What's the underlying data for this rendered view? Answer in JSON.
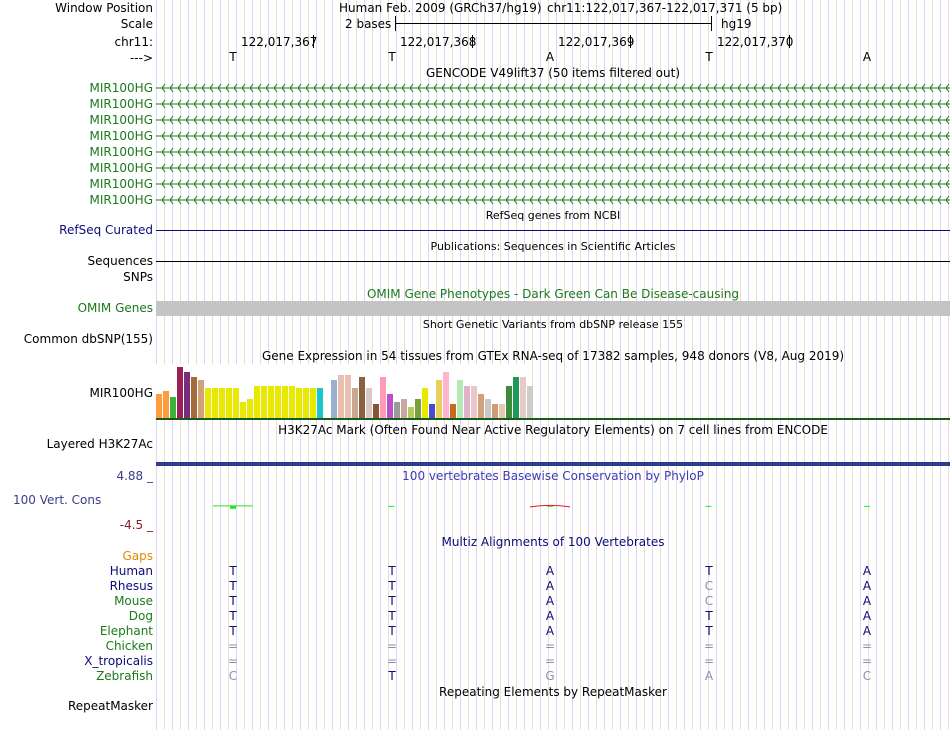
{
  "header": {
    "window_position_label": "Window Position",
    "assembly": "Human Feb. 2009 (GRCh37/hg19)",
    "position": "chr11:122,017,367-122,017,371 (5 bp)",
    "scale_label": "Scale",
    "scale_value": "2 bases",
    "scale_db": "hg19",
    "chrom_label": "chr11:",
    "ticks": [
      "122,017,367",
      "122,017,368",
      "122,017,369",
      "122,017,370"
    ],
    "strand_label": "--->",
    "sequence": [
      "T",
      "T",
      "A",
      "T",
      "A"
    ]
  },
  "gencode": {
    "title": "GENCODE V49lift37 (50 items filtered out)",
    "genes": [
      "MIR100HG",
      "MIR100HG",
      "MIR100HG",
      "MIR100HG",
      "MIR100HG",
      "MIR100HG",
      "MIR100HG",
      "MIR100HG"
    ],
    "color": "#1b7a1b"
  },
  "refseq": {
    "title": "RefSeq genes from NCBI",
    "label": "RefSeq Curated",
    "color": "#0c0c78"
  },
  "publications": {
    "title": "Publications: Sequences in Scientific Articles",
    "label": "Sequences"
  },
  "snps": {
    "label": "SNPs"
  },
  "omim": {
    "title": "OMIM Gene Phenotypes - Dark Green Can Be Disease-causing",
    "label": "OMIM Genes",
    "color": "#1b7a1b"
  },
  "dbsnp": {
    "title": "Short Genetic Variants from dbSNP release 155",
    "label": "Common dbSNP(155)"
  },
  "gtex": {
    "title": "Gene Expression in 54 tissues from GTEx RNA-seq of 17382 samples, 948 donors (V8, Aug 2019)",
    "label": "MIR100HG",
    "values": [
      0.45,
      0.5,
      0.38,
      0.95,
      0.85,
      0.75,
      0.7,
      0.55,
      0.55,
      0.55,
      0.55,
      0.55,
      0.3,
      0.35,
      0.6,
      0.6,
      0.6,
      0.6,
      0.6,
      0.6,
      0.55,
      0.55,
      0.55,
      0.55,
      0.0,
      0.7,
      0.8,
      0.8,
      0.55,
      0.75,
      0.55,
      0.25,
      0.75,
      0.45,
      0.3,
      0.35,
      0.2,
      0.35,
      0.55,
      0.25,
      0.7,
      0.85,
      0.25,
      0.7,
      0.6,
      0.6,
      0.45,
      0.35,
      0.25,
      0.25,
      0.6,
      0.75,
      0.75,
      0.6
    ],
    "colors": [
      "#ff9c3c",
      "#ff9c3c",
      "#3cb43c",
      "#9a1f5a",
      "#7a2e7a",
      "#a36a3c",
      "#d2a07a",
      "#e8e800",
      "#e8e800",
      "#e8e800",
      "#e8e800",
      "#e8e800",
      "#e8e800",
      "#e8e800",
      "#e8e800",
      "#e8e800",
      "#e8e800",
      "#e8e800",
      "#e8e800",
      "#e8e800",
      "#e8e800",
      "#e8e800",
      "#e8e800",
      "#18c8c8",
      "#cccccc",
      "#9ab0cc",
      "#e8c0b0",
      "#e8c0b0",
      "#c8a890",
      "#8a6040",
      "#d8c8c8",
      "#8a5430",
      "#ff9cb4",
      "#b850c8",
      "#9a9a9a",
      "#c8a8a0",
      "#b4cc5c",
      "#78a03c",
      "#e8e800",
      "#4a4acc",
      "#e8d05c",
      "#ffb4d0",
      "#c86a1e",
      "#b4e8b4",
      "#e0b4c8",
      "#e8c8c8",
      "#d2a07a",
      "#c8c8c8",
      "#cc9c78",
      "#e8c8b0",
      "#3c8a3c",
      "#1b9a5a",
      "#ecc8c8",
      "#cccccc"
    ]
  },
  "h3k27ac": {
    "title": "H3K27Ac Mark (Often Found Near Active Regulatory Elements) on 7 cell lines from ENCODE",
    "label": "Layered H3K27Ac"
  },
  "phylop": {
    "title": "100 vertebrates Basewise Conservation by PhyloP",
    "label": "100 Vert. Cons",
    "max": "4.88 _",
    "min": "-4.5 _",
    "scores": [
      0.3,
      0.0,
      -0.1,
      0.0,
      0.0
    ],
    "title_color": "#3c3cb4"
  },
  "multiz": {
    "title": "Multiz Alignments of 100 Vertebrates",
    "gaps_label": "Gaps",
    "species": [
      {
        "name": "Human",
        "bases": [
          "T",
          "T",
          "A",
          "T",
          "A"
        ]
      },
      {
        "name": "Rhesus",
        "bases": [
          "T",
          "T",
          "A",
          "C",
          "A"
        ]
      },
      {
        "name": "Mouse",
        "bases": [
          "T",
          "T",
          "A",
          "C",
          "A"
        ]
      },
      {
        "name": "Dog",
        "bases": [
          "T",
          "T",
          "A",
          "T",
          "A"
        ]
      },
      {
        "name": "Elephant",
        "bases": [
          "T",
          "T",
          "A",
          "T",
          "A"
        ]
      },
      {
        "name": "Chicken",
        "bases": [
          "=",
          "=",
          "=",
          "=",
          "="
        ]
      },
      {
        "name": "X_tropicalis",
        "bases": [
          "=",
          "=",
          "=",
          "=",
          "="
        ]
      },
      {
        "name": "Zebrafish",
        "bases": [
          "C",
          "T",
          "G",
          "A",
          "C"
        ]
      }
    ]
  },
  "repeatmasker": {
    "title": "Repeating Elements by RepeatMasker",
    "label": "RepeatMasker"
  }
}
